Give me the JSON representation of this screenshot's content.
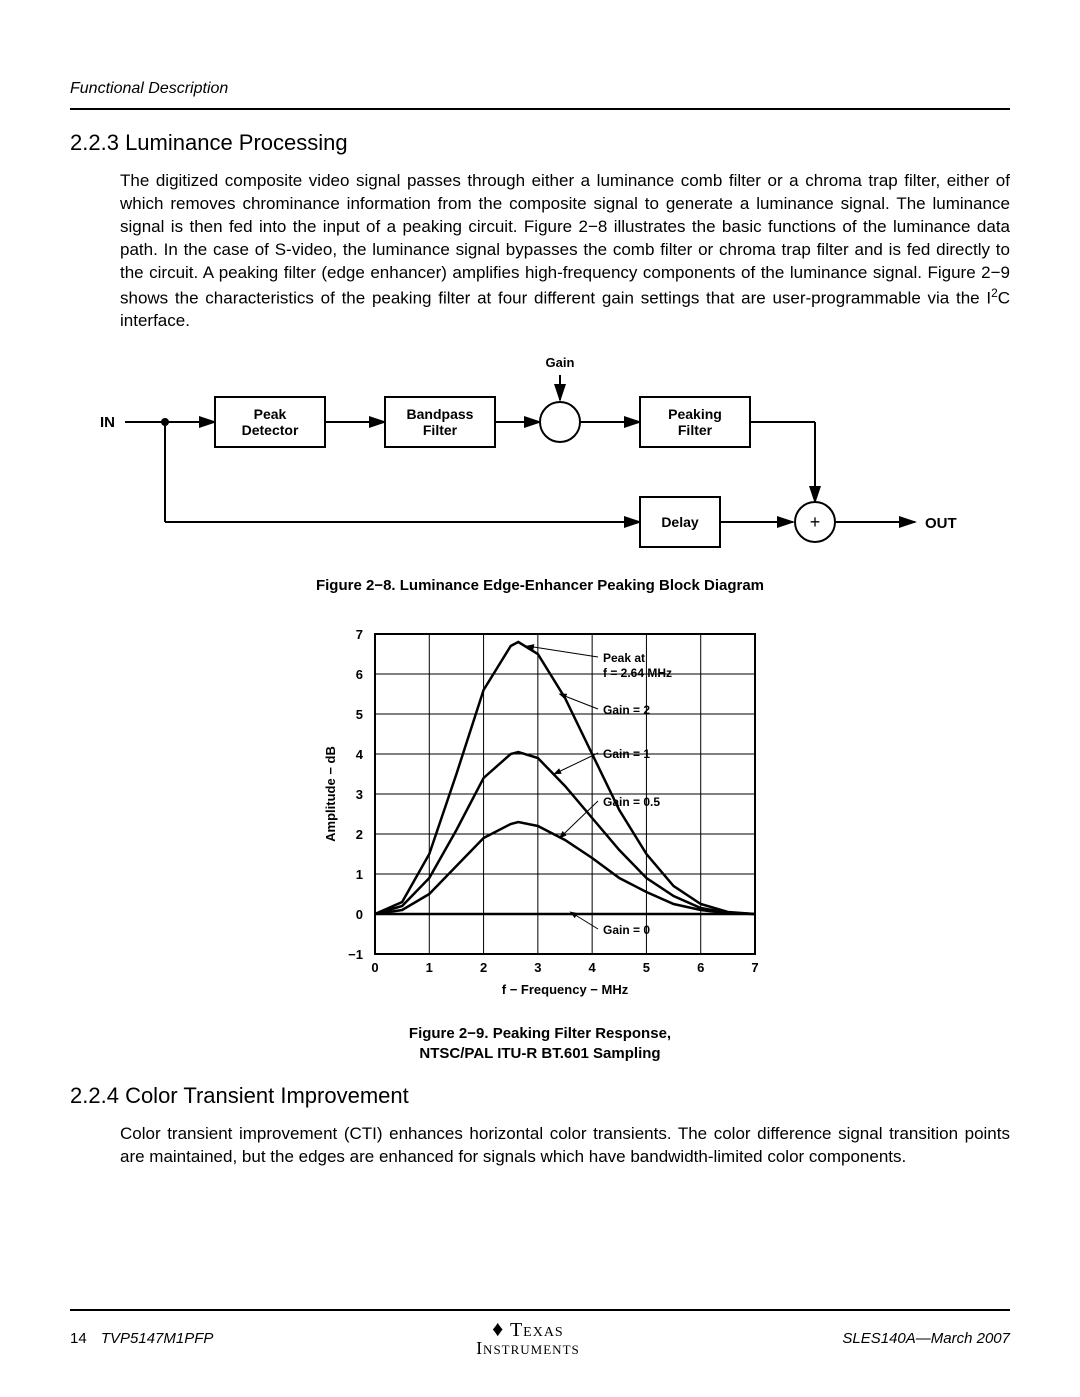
{
  "header": {
    "section_label": "Functional Description"
  },
  "section1": {
    "number": "2.2.3",
    "title": "Luminance Processing",
    "body_pre": "The digitized composite video signal passes through either a luminance comb filter or a chroma trap filter, either of which removes chrominance information from the composite signal to generate a luminance signal. The luminance signal is then fed into the input of a peaking circuit. Figure 2−8 illustrates the basic functions of the luminance data path. In the case of S-video, the luminance signal bypasses the comb filter or chroma trap filter and is fed directly to the circuit. A peaking filter (edge enhancer) amplifies high-frequency components of the luminance signal. Figure 2−9 shows the characteristics of the peaking filter at four different gain settings that are user-programmable via the I",
    "body_post": "C interface."
  },
  "block_diagram": {
    "in_label": "IN",
    "gain_label": "Gain",
    "blocks": {
      "peak_detector": "Peak\nDetector",
      "bandpass": "Bandpass\nFilter",
      "peaking": "Peaking\nFilter",
      "delay": "Delay"
    },
    "out_label": "OUT",
    "sum_label": "+",
    "caption": "Figure 2−8. Luminance Edge-Enhancer Peaking Block Diagram",
    "colors": {
      "stroke": "#000000",
      "fill": "#ffffff"
    },
    "line_width": 2
  },
  "chart": {
    "type": "line",
    "xlabel": "f − Frequency − MHz",
    "ylabel": "Amplitude − dB",
    "xlim": [
      0,
      7
    ],
    "xtick_step": 1,
    "ylim": [
      -1,
      7
    ],
    "ytick_step": 1,
    "background_color": "#ffffff",
    "grid_color": "#000000",
    "line_color": "#000000",
    "line_width": 2,
    "annotations": {
      "peak_at": "Peak at\nf = 2.64 MHz",
      "g2": "Gain = 2",
      "g1": "Gain = 1",
      "g05": "Gain = 0.5",
      "g0": "Gain = 0"
    },
    "series": [
      {
        "name": "gain2",
        "points": [
          [
            0,
            0
          ],
          [
            0.5,
            0.3
          ],
          [
            1,
            1.5
          ],
          [
            1.5,
            3.5
          ],
          [
            2,
            5.6
          ],
          [
            2.5,
            6.7
          ],
          [
            2.64,
            6.8
          ],
          [
            3,
            6.5
          ],
          [
            3.5,
            5.4
          ],
          [
            4,
            4.0
          ],
          [
            4.5,
            2.6
          ],
          [
            5,
            1.5
          ],
          [
            5.5,
            0.7
          ],
          [
            6,
            0.25
          ],
          [
            6.5,
            0.05
          ],
          [
            7,
            0
          ]
        ]
      },
      {
        "name": "gain1",
        "points": [
          [
            0,
            0
          ],
          [
            0.5,
            0.2
          ],
          [
            1,
            0.9
          ],
          [
            1.5,
            2.1
          ],
          [
            2,
            3.4
          ],
          [
            2.5,
            4.0
          ],
          [
            2.64,
            4.05
          ],
          [
            3,
            3.9
          ],
          [
            3.5,
            3.2
          ],
          [
            4,
            2.4
          ],
          [
            4.5,
            1.6
          ],
          [
            5,
            0.9
          ],
          [
            5.5,
            0.45
          ],
          [
            6,
            0.15
          ],
          [
            6.5,
            0.03
          ],
          [
            7,
            0
          ]
        ]
      },
      {
        "name": "gain05",
        "points": [
          [
            0,
            0
          ],
          [
            0.5,
            0.1
          ],
          [
            1,
            0.5
          ],
          [
            1.5,
            1.2
          ],
          [
            2,
            1.9
          ],
          [
            2.5,
            2.25
          ],
          [
            2.64,
            2.3
          ],
          [
            3,
            2.2
          ],
          [
            3.5,
            1.85
          ],
          [
            4,
            1.4
          ],
          [
            4.5,
            0.9
          ],
          [
            5,
            0.55
          ],
          [
            5.5,
            0.25
          ],
          [
            6,
            0.1
          ],
          [
            6.5,
            0.02
          ],
          [
            7,
            0
          ]
        ]
      },
      {
        "name": "gain0",
        "points": [
          [
            0,
            0
          ],
          [
            7,
            0
          ]
        ]
      }
    ],
    "caption": "Figure 2−9. Peaking Filter Response,\nNTSC/PAL ITU-R BT.601 Sampling"
  },
  "section2": {
    "number": "2.2.4",
    "title": "Color Transient Improvement",
    "body": "Color transient improvement (CTI) enhances horizontal color transients. The color difference signal transition points are maintained, but the edges are enhanced for signals which have bandwidth-limited color components."
  },
  "footer": {
    "page_number": "14",
    "part_number": "TVP5147M1PFP",
    "doc_id": "SLES140A—March 2007",
    "logo_top": "Texas",
    "logo_bottom": "Instruments"
  }
}
